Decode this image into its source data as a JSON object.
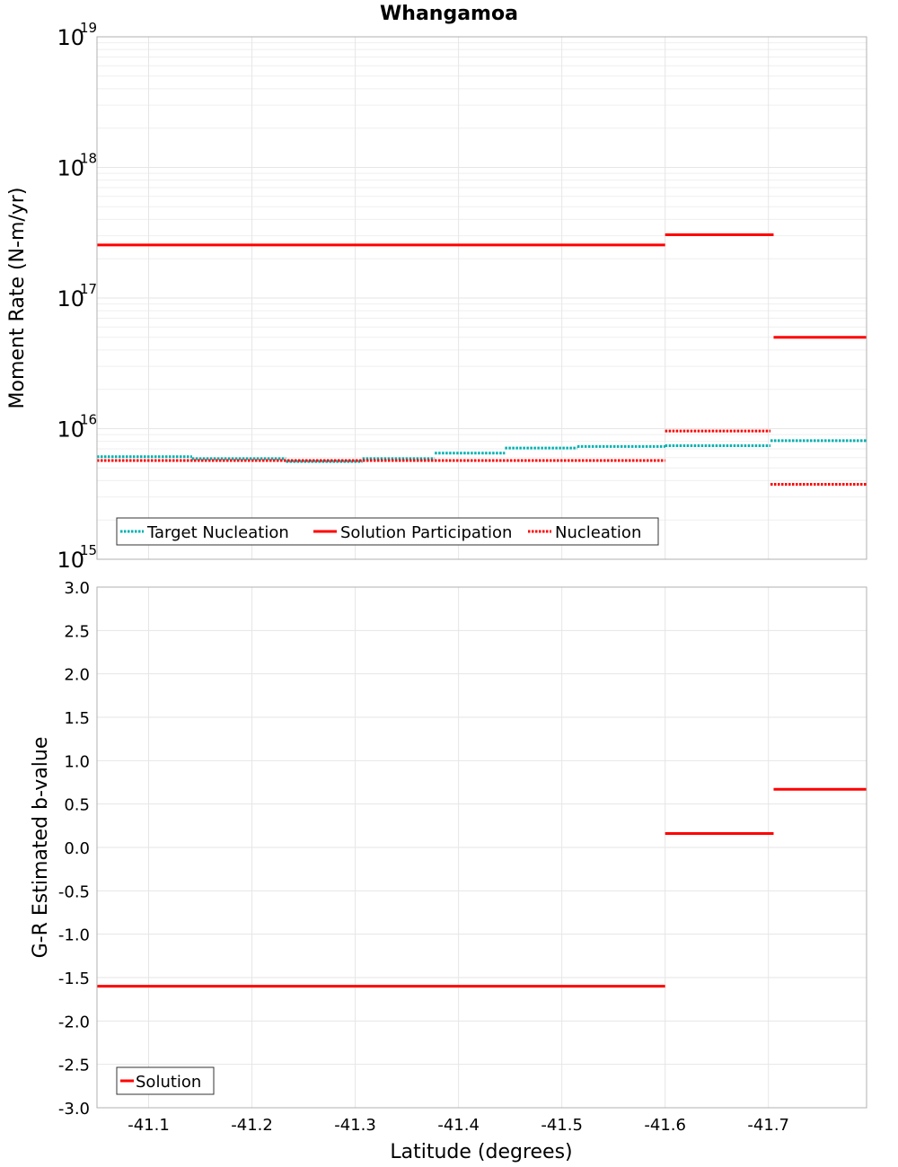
{
  "chart_data": [
    {
      "type": "line",
      "title": "Whangamoa",
      "xlabel": "",
      "ylabel": "Moment Rate (N-m/yr)",
      "yscale": "log",
      "ylim": [
        1000000000000000.0,
        1e+19
      ],
      "xlim": [
        -41.05,
        -41.795
      ],
      "xticks": [
        -41.1,
        -41.2,
        -41.3,
        -41.4,
        -41.5,
        -41.6,
        -41.7
      ],
      "xtick_labels": [
        "-41.1",
        "-41.2",
        "-41.3",
        "-41.4",
        "-41.5",
        "-41.6",
        "-41.7"
      ],
      "yticks": [
        {
          "value": 1000000000000000.0,
          "base": "10",
          "exp": "15"
        },
        {
          "value": 1e+16,
          "base": "10",
          "exp": "16"
        },
        {
          "value": 1e+17,
          "base": "10",
          "exp": "17"
        },
        {
          "value": 1e+18,
          "base": "10",
          "exp": "18"
        },
        {
          "value": 1e+19,
          "base": "10",
          "exp": "19"
        }
      ],
      "legend_position": "bottom-left",
      "series": [
        {
          "name": "Target Nucleation",
          "color": "#00b0b0",
          "style": "dotted",
          "segments": [
            {
              "x0": -41.05,
              "x1": -41.142,
              "y": 6100000000000000.0
            },
            {
              "x0": -41.142,
              "x1": -41.233,
              "y": 5900000000000000.0
            },
            {
              "x0": -41.233,
              "x1": -41.307,
              "y": 5600000000000000.0
            },
            {
              "x0": -41.307,
              "x1": -41.377,
              "y": 5900000000000000.0
            },
            {
              "x0": -41.377,
              "x1": -41.445,
              "y": 6500000000000000.0
            },
            {
              "x0": -41.445,
              "x1": -41.515,
              "y": 7100000000000000.0
            },
            {
              "x0": -41.515,
              "x1": -41.6,
              "y": 7300000000000000.0
            },
            {
              "x0": -41.6,
              "x1": -41.702,
              "y": 7400000000000000.0
            },
            {
              "x0": -41.702,
              "x1": -41.795,
              "y": 8100000000000000.0
            }
          ]
        },
        {
          "name": "Solution Participation",
          "color": "#ff0000",
          "style": "solid",
          "segments": [
            {
              "x0": -41.05,
              "x1": -41.6,
              "y": 2.55e+17
            },
            {
              "x0": -41.6,
              "x1": -41.705,
              "y": 3.05e+17
            },
            {
              "x0": -41.705,
              "x1": -41.795,
              "y": 5e+16
            }
          ]
        },
        {
          "name": "Nucleation",
          "color": "#ff0000",
          "style": "dotted",
          "segments": [
            {
              "x0": -41.05,
              "x1": -41.6,
              "y": 5700000000000000.0
            },
            {
              "x0": -41.6,
              "x1": -41.702,
              "y": 9600000000000000.0
            },
            {
              "x0": -41.702,
              "x1": -41.795,
              "y": 3750000000000000.0
            }
          ]
        }
      ]
    },
    {
      "type": "line",
      "title": "",
      "xlabel": "Latitude (degrees)",
      "ylabel": "G-R Estimated b-value",
      "ylim": [
        -3.0,
        3.0
      ],
      "xlim": [
        -41.05,
        -41.795
      ],
      "xticks": [
        -41.1,
        -41.2,
        -41.3,
        -41.4,
        -41.5,
        -41.6,
        -41.7
      ],
      "xtick_labels": [
        "-41.1",
        "-41.2",
        "-41.3",
        "-41.4",
        "-41.5",
        "-41.6",
        "-41.7"
      ],
      "yticks": [
        3.0,
        2.5,
        2.0,
        1.5,
        1.0,
        0.5,
        0.0,
        -0.5,
        -1.0,
        -1.5,
        -2.0,
        -2.5,
        -3.0
      ],
      "ytick_labels": [
        "3.0",
        "2.5",
        "2.0",
        "1.5",
        "1.0",
        "0.5",
        "0.0",
        "-0.5",
        "-1.0",
        "-1.5",
        "-2.0",
        "-2.5",
        "-3.0"
      ],
      "legend_position": "bottom-left",
      "series": [
        {
          "name": "Solution",
          "color": "#ff0000",
          "style": "solid",
          "segments": [
            {
              "x0": -41.05,
              "x1": -41.6,
              "y": -1.6
            },
            {
              "x0": -41.6,
              "x1": -41.705,
              "y": 0.16
            },
            {
              "x0": -41.705,
              "x1": -41.795,
              "y": 0.67
            }
          ]
        }
      ]
    }
  ]
}
